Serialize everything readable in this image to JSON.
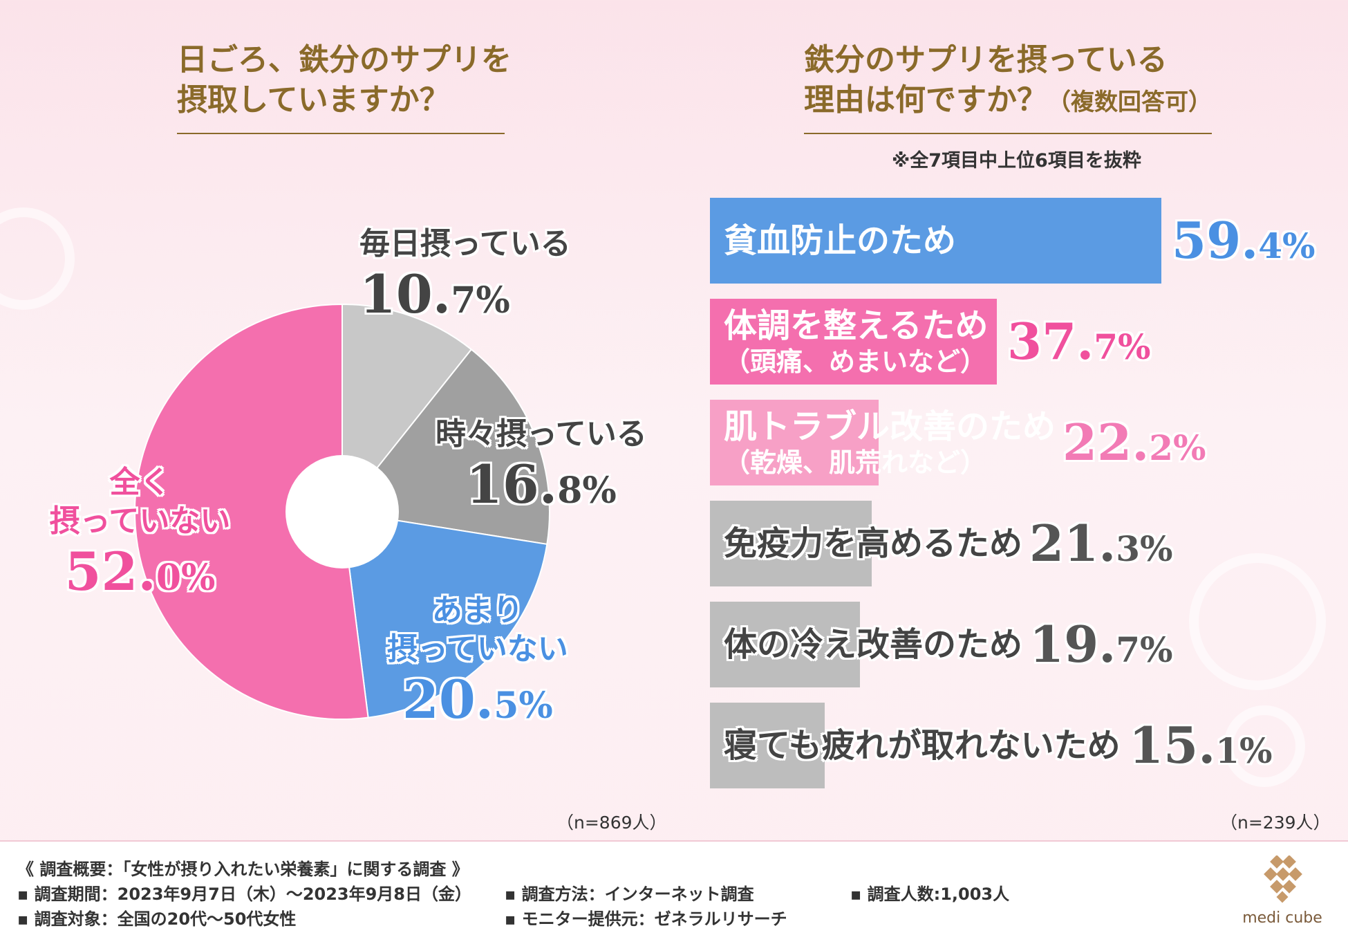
{
  "left": {
    "title_line1": "日ごろ、鉄分のサプリを",
    "title_line2": "摂取していますか？",
    "n": "（n=869人）"
  },
  "right": {
    "title_line1": "鉄分のサプリを摂っている",
    "title_line2": "理由は何ですか？",
    "title_suffix": "（複数回答可）",
    "note": "※全7項目中上位6項目を抜粋",
    "n": "（n=239人）"
  },
  "chart_data": [
    {
      "type": "pie",
      "title": "日ごろ、鉄分のサプリを摂取していますか？",
      "slices": [
        {
          "label": "毎日摂っている",
          "value": 10.7,
          "color": "#c8c8c8"
        },
        {
          "label": "時々摂っている",
          "value": 16.8,
          "color": "#a0a0a0"
        },
        {
          "label": "あまり摂っていない",
          "value": 20.5,
          "color": "#5b9be3"
        },
        {
          "label": "全く摂っていない",
          "value": 52.0,
          "color": "#f46fae"
        }
      ],
      "unit": "%"
    },
    {
      "type": "bar",
      "orientation": "horizontal",
      "title": "鉄分のサプリを摂っている理由は何ですか？（複数回答可）",
      "categories": [
        "貧血防止のため",
        "体調を整えるため（頭痛、めまいなど）",
        "肌トラブル改善のため（乾燥、肌荒れなど）",
        "免疫力を高めるため",
        "体の冷え改善のため",
        "寝ても疲れが取れないため"
      ],
      "values": [
        59.4,
        37.7,
        22.2,
        21.3,
        19.7,
        15.1
      ],
      "colors": [
        "#5b9be3",
        "#f46fae",
        "#f7a0c6",
        "#bdbdbd",
        "#bdbdbd",
        "#bdbdbd"
      ],
      "unit": "%",
      "xlim": [
        0,
        100
      ]
    }
  ],
  "pie_labels": {
    "daily": {
      "l1": "毎日摂っている",
      "int": "10.",
      "dec": "7%"
    },
    "sometimes": {
      "l1": "時々摂っている",
      "int": "16.",
      "dec": "8%"
    },
    "rarely": {
      "l1": "あまり",
      "l2": "摂っていない",
      "int": "20.",
      "dec": "5%"
    },
    "never": {
      "l1": "全く",
      "l2": "摂っていない",
      "int": "52.",
      "dec": "0%"
    }
  },
  "bars": [
    {
      "main": "貧血防止のため",
      "sub": "",
      "int": "59.",
      "dec": "4%"
    },
    {
      "main": "体調を整えるため",
      "sub": "（頭痛、めまいなど）",
      "int": "37.",
      "dec": "7%"
    },
    {
      "main": "肌トラブル改善のため",
      "sub": "（乾燥、肌荒れなど）",
      "int": "22.",
      "dec": "2%"
    },
    {
      "main": "免疫力を高めるため",
      "sub": "",
      "int": "21.",
      "dec": "3%"
    },
    {
      "main": "体の冷え改善のため",
      "sub": "",
      "int": "19.",
      "dec": "7%"
    },
    {
      "main": "寝ても疲れが取れないため",
      "sub": "",
      "int": "15.",
      "dec": "1%"
    }
  ],
  "footer": {
    "heading": "《 調査概要：「女性が摂り入れたい栄養素」に関する調査 》",
    "period": "▪ 調査期間：2023年9月7日（木）～2023年9月8日（金）",
    "target": "▪ 調査対象：全国の20代～50代女性",
    "method": "▪ 調査方法：インターネット調査",
    "provider": "▪ モニター提供元：ゼネラルリサーチ",
    "count": "▪ 調査人数:1,003人",
    "logo_text": "medi cube"
  }
}
